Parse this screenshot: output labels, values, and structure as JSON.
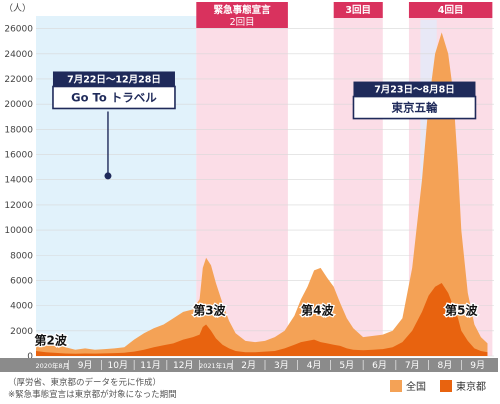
{
  "chart_data": {
    "type": "area",
    "unit_label": "（人）",
    "ylim": [
      0,
      27000
    ],
    "yticks": [
      0,
      2000,
      4000,
      6000,
      8000,
      10000,
      12000,
      14000,
      16000,
      18000,
      20000,
      22000,
      24000,
      26000
    ],
    "month_labels": [
      "2020年8月",
      "9月",
      "10月",
      "11月",
      "12月",
      "2021年1月",
      "2月",
      "3月",
      "4月",
      "5月",
      "6月",
      "7月",
      "8月",
      "9月"
    ],
    "series": [
      {
        "name": "全国",
        "color": "#f4a256",
        "x": [
          0,
          0.3,
          0.6,
          0.9,
          1.2,
          1.5,
          1.8,
          2.1,
          2.4,
          2.7,
          3.0,
          3.3,
          3.6,
          3.9,
          4.2,
          4.5,
          4.8,
          5.0,
          5.1,
          5.2,
          5.35,
          5.5,
          5.7,
          5.9,
          6.1,
          6.4,
          6.7,
          7.0,
          7.3,
          7.6,
          7.9,
          8.1,
          8.3,
          8.5,
          8.7,
          8.9,
          9.1,
          9.3,
          9.5,
          9.7,
          10.0,
          10.3,
          10.6,
          10.9,
          11.2,
          11.5,
          11.8,
          12.0,
          12.2,
          12.4,
          12.6,
          12.75,
          12.9,
          13.0,
          13.2,
          13.4,
          13.6,
          13.8
        ],
        "values": [
          1000,
          1200,
          900,
          700,
          500,
          600,
          500,
          550,
          600,
          700,
          1300,
          1800,
          2200,
          2500,
          3000,
          3500,
          3700,
          4500,
          7000,
          7800,
          7200,
          5800,
          4200,
          2800,
          1800,
          1200,
          1100,
          1200,
          1500,
          2000,
          3200,
          4500,
          5500,
          6800,
          7000,
          6200,
          5500,
          4200,
          3000,
          2200,
          1500,
          1600,
          1700,
          2000,
          3000,
          7000,
          14000,
          20000,
          24000,
          25700,
          24000,
          21000,
          15000,
          10000,
          5000,
          2500,
          1500,
          1000
        ]
      },
      {
        "name": "東京都",
        "color": "#e8630f",
        "x": [
          0,
          0.3,
          0.6,
          0.9,
          1.2,
          1.5,
          1.8,
          2.1,
          2.4,
          2.7,
          3.0,
          3.3,
          3.6,
          3.9,
          4.2,
          4.5,
          4.8,
          5.0,
          5.1,
          5.2,
          5.35,
          5.5,
          5.7,
          5.9,
          6.1,
          6.4,
          6.7,
          7.0,
          7.3,
          7.6,
          7.9,
          8.1,
          8.3,
          8.5,
          8.7,
          8.9,
          9.1,
          9.3,
          9.5,
          9.7,
          10.0,
          10.3,
          10.6,
          10.9,
          11.2,
          11.5,
          11.8,
          12.0,
          12.2,
          12.4,
          12.6,
          12.75,
          12.9,
          13.0,
          13.2,
          13.4,
          13.6,
          13.8
        ],
        "values": [
          400,
          300,
          250,
          200,
          180,
          200,
          190,
          210,
          230,
          260,
          350,
          500,
          700,
          850,
          1000,
          1300,
          1500,
          1700,
          2300,
          2500,
          2000,
          1400,
          900,
          600,
          400,
          300,
          300,
          350,
          400,
          600,
          900,
          1100,
          1200,
          1300,
          1100,
          1000,
          900,
          800,
          600,
          500,
          450,
          500,
          550,
          700,
          1100,
          2000,
          3500,
          4800,
          5500,
          5800,
          5000,
          4000,
          3000,
          2000,
          1200,
          600,
          400,
          300
        ]
      }
    ],
    "bands": [
      {
        "label": "",
        "start": 0,
        "end": 4.9,
        "color": "#e1f2fb"
      },
      {
        "label": "緊急事態宣言\n2回目",
        "start": 4.9,
        "end": 7.7,
        "color": "#fbdde7"
      },
      {
        "label": "3回目",
        "start": 9.1,
        "end": 10.6,
        "color": "#fbdde7"
      },
      {
        "label": "4回目",
        "start": 11.4,
        "end": 13.95,
        "color": "#fbdde7"
      }
    ],
    "wave_labels": [
      {
        "text": "第2波",
        "x": 0.45,
        "y": 900
      },
      {
        "text": "第3波",
        "x": 5.3,
        "y": 3300
      },
      {
        "text": "第4波",
        "x": 8.6,
        "y": 3300
      },
      {
        "text": "第5波",
        "x": 13.0,
        "y": 3300
      }
    ],
    "annotations": [
      {
        "label_top": "7月22日～12月28日",
        "label_main": "Go To トラベル",
        "x": 2.2,
        "y": 14300,
        "box_y": 21800
      },
      {
        "label_top": "7月23日～8月8日",
        "label_main": "東京五輪",
        "x": 12.7,
        "y": 20700,
        "box_y": 21000
      }
    ],
    "olympics_span": {
      "start": 11.75,
      "end": 12.25,
      "color": "#e8e8f6"
    }
  },
  "footnotes": [
    "（厚労省、東京都のデータを元に作成）",
    "※緊急事態宣言は東京都が対象になった期間"
  ],
  "legend": [
    {
      "name": "全国",
      "color": "#f4a256"
    },
    {
      "name": "東京都",
      "color": "#e8630f"
    }
  ]
}
